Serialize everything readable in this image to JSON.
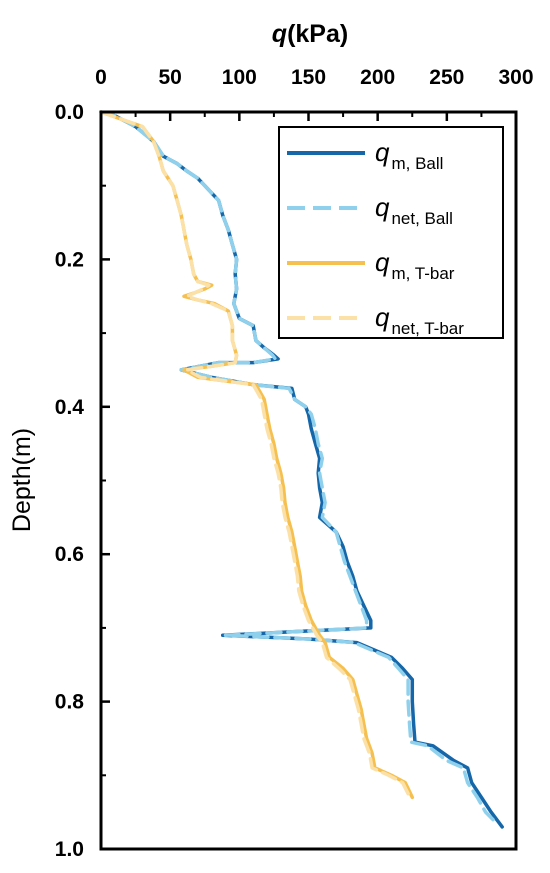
{
  "chart_data": {
    "type": "line",
    "xlabel_var": "q",
    "xlabel_unit": "(kPa)",
    "ylabel": "Depth(m)",
    "x_axis_position": "top",
    "y_axis_inverted": true,
    "xlim": [
      0,
      300
    ],
    "ylim": [
      0.0,
      1.0
    ],
    "x_ticks": [
      0,
      50,
      100,
      150,
      200,
      250,
      300
    ],
    "y_ticks": [
      0.0,
      0.2,
      0.4,
      0.6,
      0.8,
      1.0
    ],
    "y_tick_labels": [
      "0.0",
      "0.2",
      "0.4",
      "0.6",
      "0.8",
      "1.0"
    ],
    "grid": false,
    "legend_position": "top-right",
    "series": [
      {
        "name_main": "q",
        "name_sub": "m, Ball",
        "color": "#1667a9",
        "dash": "solid",
        "points": [
          [
            0,
            0.0
          ],
          [
            10,
            0.005
          ],
          [
            25,
            0.02
          ],
          [
            38,
            0.04
          ],
          [
            45,
            0.06
          ],
          [
            55,
            0.07
          ],
          [
            62,
            0.08
          ],
          [
            70,
            0.09
          ],
          [
            75,
            0.1
          ],
          [
            80,
            0.11
          ],
          [
            85,
            0.12
          ],
          [
            88,
            0.14
          ],
          [
            92,
            0.16
          ],
          [
            95,
            0.18
          ],
          [
            98,
            0.2
          ],
          [
            97,
            0.22
          ],
          [
            98,
            0.24
          ],
          [
            96,
            0.26
          ],
          [
            100,
            0.28
          ],
          [
            110,
            0.29
          ],
          [
            112,
            0.31
          ],
          [
            118,
            0.32
          ],
          [
            125,
            0.33
          ],
          [
            128,
            0.335
          ],
          [
            110,
            0.34
          ],
          [
            85,
            0.34
          ],
          [
            58,
            0.35
          ],
          [
            80,
            0.36
          ],
          [
            110,
            0.37
          ],
          [
            138,
            0.375
          ],
          [
            140,
            0.39
          ],
          [
            148,
            0.4
          ],
          [
            150,
            0.41
          ],
          [
            152,
            0.43
          ],
          [
            155,
            0.45
          ],
          [
            158,
            0.47
          ],
          [
            157,
            0.49
          ],
          [
            158,
            0.51
          ],
          [
            160,
            0.53
          ],
          [
            158,
            0.55
          ],
          [
            170,
            0.57
          ],
          [
            175,
            0.59
          ],
          [
            178,
            0.61
          ],
          [
            182,
            0.63
          ],
          [
            185,
            0.65
          ],
          [
            190,
            0.67
          ],
          [
            195,
            0.69
          ],
          [
            195,
            0.7
          ],
          [
            140,
            0.705
          ],
          [
            88,
            0.71
          ],
          [
            150,
            0.715
          ],
          [
            185,
            0.72
          ],
          [
            210,
            0.74
          ],
          [
            218,
            0.755
          ],
          [
            225,
            0.77
          ],
          [
            225,
            0.8
          ],
          [
            226,
            0.83
          ],
          [
            227,
            0.855
          ],
          [
            240,
            0.86
          ],
          [
            255,
            0.88
          ],
          [
            265,
            0.89
          ],
          [
            268,
            0.91
          ],
          [
            275,
            0.93
          ],
          [
            282,
            0.95
          ],
          [
            290,
            0.97
          ]
        ]
      },
      {
        "name_main": "q",
        "name_sub": "net, Ball",
        "color": "#8fd1ec",
        "dash": "dashed",
        "points": [
          [
            0,
            0.0
          ],
          [
            10,
            0.005
          ],
          [
            25,
            0.02
          ],
          [
            38,
            0.04
          ],
          [
            45,
            0.06
          ],
          [
            55,
            0.07
          ],
          [
            62,
            0.08
          ],
          [
            70,
            0.09
          ],
          [
            75,
            0.1
          ],
          [
            80,
            0.11
          ],
          [
            85,
            0.12
          ],
          [
            88,
            0.14
          ],
          [
            92,
            0.16
          ],
          [
            95,
            0.18
          ],
          [
            98,
            0.2
          ],
          [
            97,
            0.22
          ],
          [
            98,
            0.24
          ],
          [
            96,
            0.26
          ],
          [
            100,
            0.28
          ],
          [
            110,
            0.29
          ],
          [
            112,
            0.31
          ],
          [
            118,
            0.32
          ],
          [
            124,
            0.33
          ],
          [
            126,
            0.335
          ],
          [
            110,
            0.34
          ],
          [
            85,
            0.34
          ],
          [
            58,
            0.35
          ],
          [
            80,
            0.36
          ],
          [
            110,
            0.37
          ],
          [
            136,
            0.375
          ],
          [
            140,
            0.39
          ],
          [
            148,
            0.4
          ],
          [
            152,
            0.41
          ],
          [
            155,
            0.43
          ],
          [
            157,
            0.45
          ],
          [
            160,
            0.47
          ],
          [
            158,
            0.49
          ],
          [
            160,
            0.51
          ],
          [
            162,
            0.53
          ],
          [
            160,
            0.55
          ],
          [
            170,
            0.57
          ],
          [
            173,
            0.59
          ],
          [
            176,
            0.61
          ],
          [
            180,
            0.63
          ],
          [
            184,
            0.65
          ],
          [
            188,
            0.67
          ],
          [
            192,
            0.69
          ],
          [
            192,
            0.7
          ],
          [
            140,
            0.705
          ],
          [
            90,
            0.71
          ],
          [
            150,
            0.715
          ],
          [
            183,
            0.72
          ],
          [
            208,
            0.74
          ],
          [
            215,
            0.755
          ],
          [
            222,
            0.77
          ],
          [
            222,
            0.8
          ],
          [
            223,
            0.83
          ],
          [
            224,
            0.855
          ],
          [
            236,
            0.86
          ],
          [
            250,
            0.88
          ],
          [
            262,
            0.89
          ],
          [
            265,
            0.91
          ],
          [
            272,
            0.93
          ],
          [
            278,
            0.95
          ],
          [
            286,
            0.965
          ]
        ]
      },
      {
        "name_main": "q",
        "name_sub": "m, T-bar",
        "color": "#f6c050",
        "dash": "solid",
        "points": [
          [
            0,
            0.0
          ],
          [
            15,
            0.01
          ],
          [
            30,
            0.02
          ],
          [
            38,
            0.04
          ],
          [
            42,
            0.06
          ],
          [
            45,
            0.08
          ],
          [
            52,
            0.1
          ],
          [
            55,
            0.12
          ],
          [
            58,
            0.14
          ],
          [
            60,
            0.16
          ],
          [
            62,
            0.18
          ],
          [
            65,
            0.2
          ],
          [
            67,
            0.22
          ],
          [
            70,
            0.23
          ],
          [
            80,
            0.235
          ],
          [
            75,
            0.24
          ],
          [
            68,
            0.245
          ],
          [
            60,
            0.25
          ],
          [
            70,
            0.255
          ],
          [
            82,
            0.26
          ],
          [
            92,
            0.27
          ],
          [
            95,
            0.29
          ],
          [
            95,
            0.31
          ],
          [
            98,
            0.33
          ],
          [
            97,
            0.34
          ],
          [
            80,
            0.345
          ],
          [
            60,
            0.35
          ],
          [
            70,
            0.36
          ],
          [
            90,
            0.365
          ],
          [
            112,
            0.37
          ],
          [
            118,
            0.39
          ],
          [
            120,
            0.41
          ],
          [
            122,
            0.43
          ],
          [
            125,
            0.45
          ],
          [
            127,
            0.47
          ],
          [
            130,
            0.49
          ],
          [
            132,
            0.51
          ],
          [
            133,
            0.53
          ],
          [
            135,
            0.55
          ],
          [
            138,
            0.57
          ],
          [
            140,
            0.59
          ],
          [
            142,
            0.61
          ],
          [
            144,
            0.63
          ],
          [
            145,
            0.65
          ],
          [
            148,
            0.67
          ],
          [
            152,
            0.69
          ],
          [
            155,
            0.7
          ],
          [
            158,
            0.71
          ],
          [
            162,
            0.72
          ],
          [
            165,
            0.74
          ],
          [
            175,
            0.755
          ],
          [
            182,
            0.77
          ],
          [
            185,
            0.79
          ],
          [
            188,
            0.81
          ],
          [
            190,
            0.83
          ],
          [
            192,
            0.85
          ],
          [
            196,
            0.87
          ],
          [
            198,
            0.89
          ],
          [
            210,
            0.9
          ],
          [
            220,
            0.91
          ],
          [
            225,
            0.93
          ]
        ]
      },
      {
        "name_main": "q",
        "name_sub": "net, T-bar",
        "color": "#fbe1a8",
        "dash": "dashed",
        "points": [
          [
            0,
            0.0
          ],
          [
            15,
            0.01
          ],
          [
            30,
            0.02
          ],
          [
            38,
            0.04
          ],
          [
            42,
            0.06
          ],
          [
            45,
            0.08
          ],
          [
            52,
            0.1
          ],
          [
            55,
            0.12
          ],
          [
            58,
            0.14
          ],
          [
            60,
            0.16
          ],
          [
            62,
            0.18
          ],
          [
            65,
            0.2
          ],
          [
            67,
            0.22
          ],
          [
            70,
            0.23
          ],
          [
            78,
            0.235
          ],
          [
            74,
            0.24
          ],
          [
            68,
            0.245
          ],
          [
            62,
            0.25
          ],
          [
            70,
            0.255
          ],
          [
            80,
            0.26
          ],
          [
            92,
            0.27
          ],
          [
            95,
            0.29
          ],
          [
            95,
            0.31
          ],
          [
            98,
            0.33
          ],
          [
            97,
            0.34
          ],
          [
            80,
            0.345
          ],
          [
            62,
            0.35
          ],
          [
            72,
            0.36
          ],
          [
            90,
            0.365
          ],
          [
            110,
            0.37
          ],
          [
            116,
            0.39
          ],
          [
            118,
            0.41
          ],
          [
            120,
            0.43
          ],
          [
            123,
            0.45
          ],
          [
            125,
            0.47
          ],
          [
            128,
            0.49
          ],
          [
            130,
            0.51
          ],
          [
            131,
            0.53
          ],
          [
            133,
            0.55
          ],
          [
            136,
            0.57
          ],
          [
            138,
            0.59
          ],
          [
            140,
            0.61
          ],
          [
            142,
            0.63
          ],
          [
            143,
            0.65
          ],
          [
            146,
            0.67
          ],
          [
            150,
            0.69
          ],
          [
            153,
            0.7
          ],
          [
            156,
            0.71
          ],
          [
            160,
            0.72
          ],
          [
            163,
            0.74
          ],
          [
            172,
            0.755
          ],
          [
            180,
            0.77
          ],
          [
            183,
            0.79
          ],
          [
            186,
            0.81
          ],
          [
            188,
            0.83
          ],
          [
            190,
            0.85
          ],
          [
            194,
            0.87
          ],
          [
            196,
            0.89
          ],
          [
            208,
            0.9
          ],
          [
            218,
            0.91
          ],
          [
            222,
            0.925
          ]
        ]
      }
    ]
  }
}
